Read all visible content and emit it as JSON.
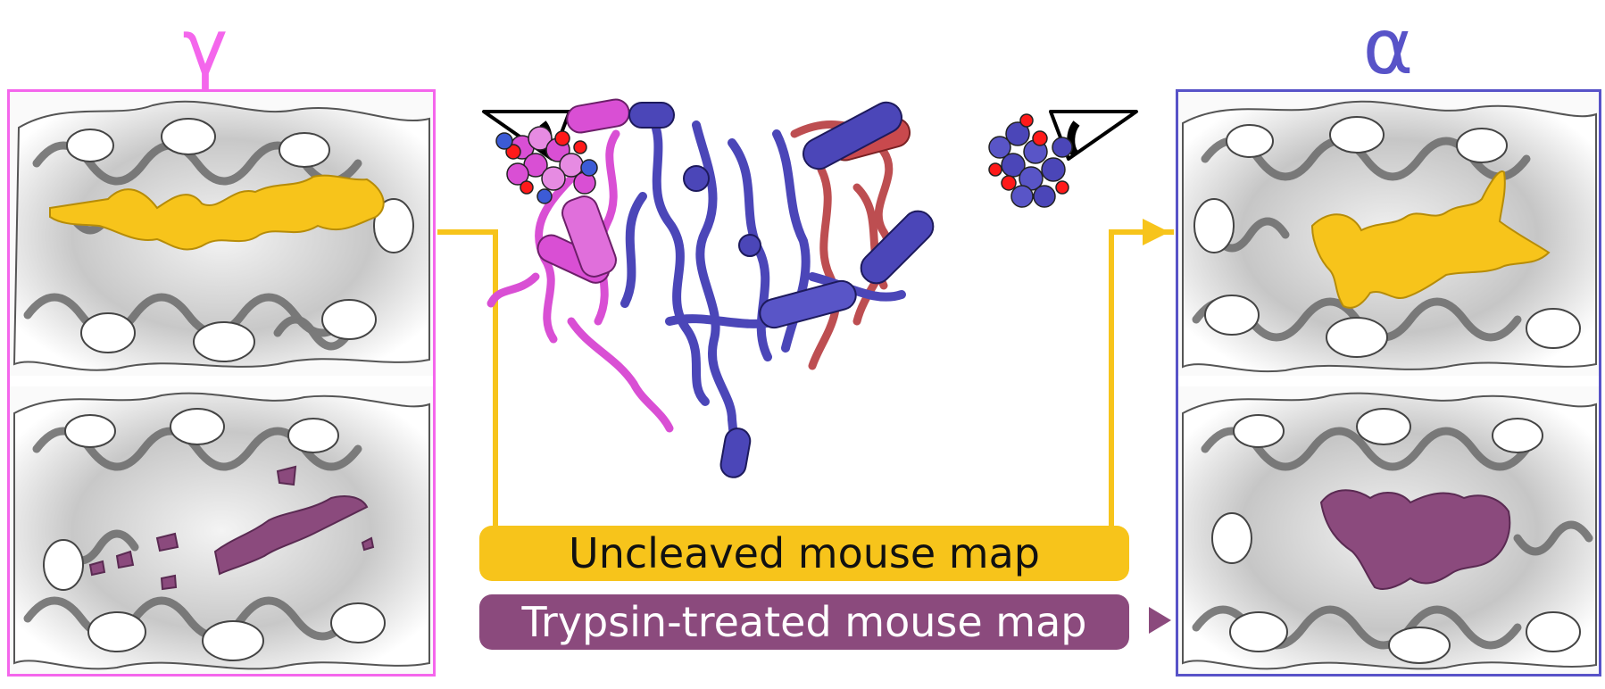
{
  "left_panel": {
    "subunit_symbol": "γ",
    "border_color": "#f466ec"
  },
  "right_panel": {
    "subunit_symbol": "α",
    "border_color": "#5853c8"
  },
  "labels": {
    "uncleaved": "Uncleaved mouse map",
    "trypsin": "Trypsin-treated mouse map"
  },
  "colors": {
    "uncleaved": "#f7c41b",
    "trypsin": "#8b4a7d",
    "map_gray": "#bdbdbd",
    "protein_magenta": "#d94fd4",
    "protein_blue": "#4b46b8",
    "protein_red": "#b63b3f"
  },
  "icons": [
    "eye-icon-left",
    "eye-icon-right"
  ]
}
